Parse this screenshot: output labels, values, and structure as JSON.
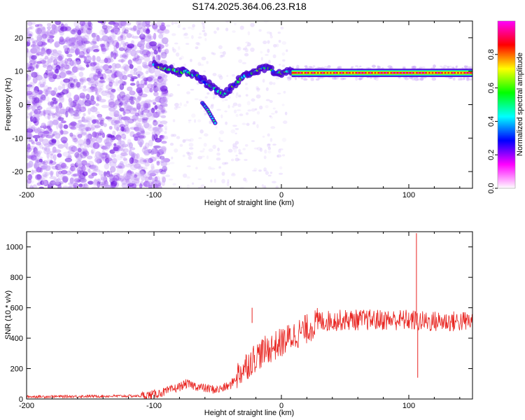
{
  "title": "S174.2025.364.06.23.R18",
  "chart_data": [
    {
      "type": "heatmap",
      "name": "spectrogram",
      "xlabel": "Height of straight line (km)",
      "ylabel": "Frequency (Hz)",
      "xlim": [
        -200,
        150
      ],
      "ylim": [
        -25,
        25
      ],
      "xticks": [
        -200,
        -100,
        0,
        100
      ],
      "yticks": [
        -20,
        -10,
        0,
        10,
        20
      ],
      "ridge": {
        "x": [
          -100,
          -95,
          -90,
          -85,
          -80,
          -75,
          -70,
          -65,
          -60,
          -55,
          -50,
          -45,
          -42,
          -40,
          -35,
          -30,
          -25,
          -20,
          -15,
          -10,
          -5,
          0,
          5,
          10,
          20,
          40,
          60,
          80,
          100,
          110,
          130,
          150
        ],
        "y": [
          12,
          11,
          10.5,
          10.5,
          9.5,
          10,
          9,
          8.5,
          6.5,
          5.5,
          4,
          3,
          4,
          5,
          6.5,
          8.5,
          9,
          10,
          11,
          11,
          9.5,
          9.5,
          10,
          9.5,
          9.5,
          9.5,
          9.5,
          9.5,
          9.5,
          9.5,
          9.5,
          9.5
        ]
      },
      "branch": {
        "x": [
          -62,
          -58,
          -55,
          -52
        ],
        "y": [
          0.5,
          -1.5,
          -3.5,
          -5.5
        ]
      }
    },
    {
      "type": "colorbar",
      "name": "amplitude-scale",
      "label": "Normalized spectral amplitude",
      "range": [
        0,
        1
      ],
      "ticks": [
        0.0,
        0.2,
        0.4,
        0.6,
        0.8
      ],
      "tick_labels": [
        "0.0",
        "0.2",
        "0.4",
        "0.6",
        "0.8"
      ],
      "colors": [
        "#ffffff",
        "#ff00ff",
        "#0000ff",
        "#00ffff",
        "#00ff00",
        "#ffff00",
        "#ff0000",
        "#ff00ff"
      ]
    },
    {
      "type": "line",
      "name": "snr",
      "xlabel": "Height of straight line (km)",
      "ylabel": "SNR (10 * v/v)",
      "xlim": [
        -200,
        150
      ],
      "ylim": [
        0,
        1100
      ],
      "xticks": [
        -200,
        -100,
        0,
        100
      ],
      "yticks": [
        0,
        200,
        400,
        600,
        800,
        1000
      ],
      "color": "#e8231f",
      "envelope": {
        "x": [
          -200,
          -150,
          -110,
          -100,
          -90,
          -80,
          -75,
          -70,
          -60,
          -50,
          -40,
          -35,
          -30,
          -20,
          -10,
          0,
          10,
          20,
          30,
          50,
          70,
          90,
          100,
          110,
          130,
          150
        ],
        "y": [
          15,
          18,
          20,
          30,
          50,
          80,
          100,
          90,
          70,
          60,
          90,
          150,
          200,
          280,
          330,
          370,
          420,
          460,
          510,
          520,
          520,
          520,
          520,
          510,
          510,
          510
        ]
      },
      "spikes": [
        {
          "x": -23,
          "y": 600
        },
        {
          "x": 106,
          "y": 1090
        },
        {
          "x": 107,
          "y": 140
        }
      ]
    }
  ]
}
